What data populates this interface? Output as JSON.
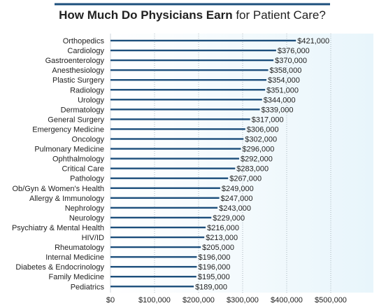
{
  "chart_data": {
    "type": "bar",
    "orientation": "horizontal",
    "title_bold": "How Much Do Physicians Earn",
    "title_rest": " for Patient Care?",
    "categories": [
      "Orthopedics",
      "Cardiology",
      "Gastroenterology",
      "Anesthesiology",
      "Plastic Surgery",
      "Radiology",
      "Urology",
      "Dermatology",
      "General Surgery",
      "Emergency Medicine",
      "Oncology",
      "Pulmonary Medicine",
      "Ophthalmology",
      "Critical Care",
      "Pathology",
      "Ob/Gyn & Women's Health",
      "Allergy & Immunology",
      "Nephrology",
      "Neurology",
      "Psychiatry & Mental Health",
      "HIV/ID",
      "Rheumatology",
      "Internal Medicine",
      "Diabetes & Endocrinology",
      "Family Medicine",
      "Pediatrics"
    ],
    "values": [
      421000,
      376000,
      370000,
      358000,
      354000,
      351000,
      344000,
      339000,
      317000,
      306000,
      302000,
      296000,
      292000,
      283000,
      267000,
      249000,
      247000,
      243000,
      229000,
      216000,
      213000,
      205000,
      196000,
      196000,
      195000,
      189000
    ],
    "value_labels": [
      "$421,000",
      "$376,000",
      "$370,000",
      "$358,000",
      "$354,000",
      "$351,000",
      "$344,000",
      "$339,000",
      "$317,000",
      "$306,000",
      "$302,000",
      "$296,000",
      "$292,000",
      "$283,000",
      "$267,000",
      "$249,000",
      "$247,000",
      "$243,000",
      "$229,000",
      "$216,000",
      "$213,000",
      "$205,000",
      "$196,000",
      "$196,000",
      "$195,000",
      "$189,000"
    ],
    "x_ticks": [
      0,
      100000,
      200000,
      300000,
      400000,
      500000
    ],
    "x_tick_labels": [
      "$0",
      "$100,000",
      "$200,000",
      "$300,000",
      "$400,000",
      "$500,000"
    ],
    "xlim": [
      0,
      600000
    ],
    "grid": "vertical-dotted",
    "colors": {
      "bar": "#1d4f7c",
      "title_rule": "#1d4f7c",
      "shade_left": "#ffffff",
      "shade_right": "#e8f5fb",
      "grid": "#9aa7b0",
      "text": "#222222"
    }
  }
}
